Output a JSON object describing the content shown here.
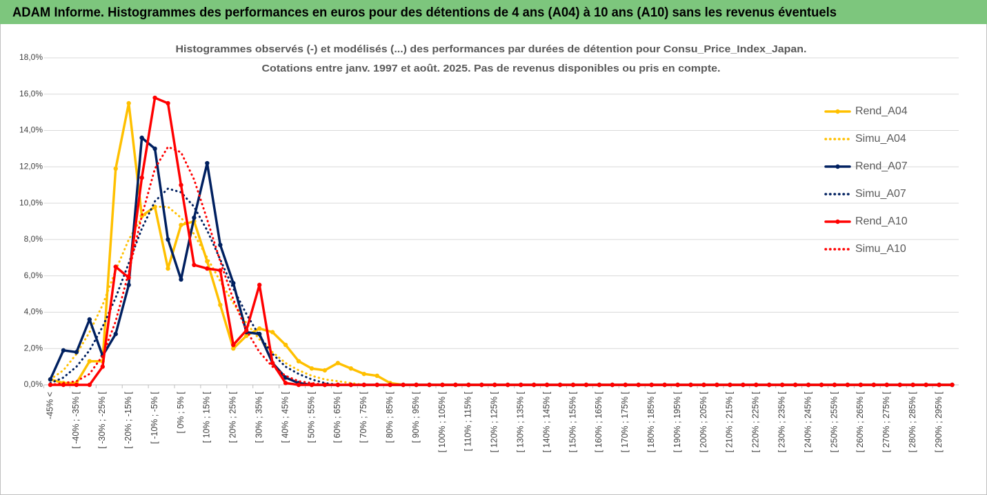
{
  "chart_data": {
    "type": "line",
    "header": "ADAM Informe. Histogrammes des performances en euros pour des détentions de 4 ans (A04) à 10 ans (A10) sans les revenus éventuels",
    "title": "Histogrammes observés (-) et modélisés (...) des performances par durées de détention pour Consu_Price_Index_Japan.",
    "subtitle": "Cotations entre janv. 1997 et août. 2025. Pas de revenus disponibles ou pris en compte.",
    "categories": [
      "-45% <",
      null,
      "[ -40% ; -35% [",
      null,
      "[ -30% ; -25% [",
      null,
      "[ -20% ; -15% [",
      null,
      "[ -10% ; -5% [",
      null,
      "[ 0% ; 5% [",
      null,
      "[ 10% ; 15% [",
      null,
      "[ 20% ; 25% [",
      null,
      "[ 30% ; 35% [",
      null,
      "[ 40% ; 45% [",
      null,
      "[ 50% ; 55% [",
      null,
      "[ 60% ; 65% [",
      null,
      "[ 70% ; 75% [",
      null,
      "[ 80% ; 85% [",
      null,
      "[ 90% ; 95% [",
      null,
      "[ 100% ; 105% [",
      null,
      "[ 110% ; 115% [",
      null,
      "[ 120% ; 125% [",
      null,
      "[ 130% ; 135% [",
      null,
      "[ 140% ; 145% [",
      null,
      "[ 150% ; 155% [",
      null,
      "[ 160% ; 165% [",
      null,
      "[ 170% ; 175% [",
      null,
      "[ 180% ; 185% [",
      null,
      "[ 190% ; 195% [",
      null,
      "[ 200% ; 205% [",
      null,
      "[ 210% ; 215% [",
      null,
      "[ 220% ; 225% [",
      null,
      "[ 230% ; 235% [",
      null,
      "[ 240% ; 245% [",
      null,
      "[ 250% ; 255% [",
      null,
      "[ 260% ; 265% [",
      null,
      "[ 270% ; 275% [",
      null,
      "[ 280% ; 285% [",
      null,
      "[ 290% ; 295% [",
      null
    ],
    "series": [
      {
        "name": "Rend_A04",
        "color": "#FFC000",
        "dash": false,
        "values": [
          0.3,
          0.1,
          0.1,
          1.3,
          1.3,
          11.9,
          15.5,
          9.3,
          9.8,
          6.4,
          8.8,
          9.0,
          6.8,
          4.4,
          2.0,
          2.7,
          3.1,
          2.9,
          2.2,
          1.3,
          0.9,
          0.8,
          1.2,
          0.9,
          0.6,
          0.5,
          0.1,
          0,
          0,
          0,
          0,
          0,
          0,
          0,
          0,
          0,
          0,
          0,
          0,
          0,
          0,
          0,
          0,
          0,
          0,
          0,
          0,
          0,
          0,
          0,
          0,
          0,
          0,
          0,
          0,
          0,
          0,
          0,
          0,
          0,
          0,
          0,
          0,
          0,
          0,
          0,
          0,
          0,
          0,
          0
        ]
      },
      {
        "name": "Simu_A04",
        "color": "#FFC000",
        "dash": true,
        "values": [
          0.3,
          0.8,
          1.7,
          2.9,
          4.4,
          6.3,
          8.0,
          9.2,
          9.8,
          9.8,
          9.2,
          8.3,
          7.0,
          5.7,
          4.5,
          3.4,
          2.5,
          1.8,
          1.2,
          0.8,
          0.5,
          0.3,
          0.2,
          0.1,
          0,
          0,
          0,
          0,
          0,
          0,
          0,
          0,
          0,
          0,
          0,
          0,
          0,
          0,
          0,
          0,
          0,
          0,
          0,
          0,
          0,
          0,
          0,
          0,
          0,
          0,
          0,
          0,
          0,
          0,
          0,
          0,
          0,
          0,
          0,
          0,
          0,
          0,
          0,
          0,
          0,
          0,
          0,
          0,
          0,
          0
        ]
      },
      {
        "name": "Rend_A07",
        "color": "#002060",
        "dash": false,
        "values": [
          0.3,
          1.9,
          1.8,
          3.6,
          1.6,
          2.8,
          5.5,
          13.6,
          13.0,
          8.0,
          5.8,
          9.2,
          12.2,
          7.7,
          5.6,
          2.9,
          2.8,
          1.2,
          0.4,
          0.1,
          0,
          0,
          0,
          0,
          0,
          0,
          0,
          0,
          0,
          0,
          0,
          0,
          0,
          0,
          0,
          0,
          0,
          0,
          0,
          0,
          0,
          0,
          0,
          0,
          0,
          0,
          0,
          0,
          0,
          0,
          0,
          0,
          0,
          0,
          0,
          0,
          0,
          0,
          0,
          0,
          0,
          0,
          0,
          0,
          0,
          0,
          0,
          0,
          0,
          0
        ]
      },
      {
        "name": "Simu_A07",
        "color": "#002060",
        "dash": true,
        "values": [
          0.1,
          0.4,
          1.0,
          1.9,
          3.2,
          4.8,
          6.7,
          8.6,
          10.1,
          10.8,
          10.6,
          9.8,
          8.5,
          6.9,
          5.3,
          3.9,
          2.7,
          1.7,
          1.0,
          0.6,
          0.3,
          0.1,
          0,
          0,
          0,
          0,
          0,
          0,
          0,
          0,
          0,
          0,
          0,
          0,
          0,
          0,
          0,
          0,
          0,
          0,
          0,
          0,
          0,
          0,
          0,
          0,
          0,
          0,
          0,
          0,
          0,
          0,
          0,
          0,
          0,
          0,
          0,
          0,
          0,
          0,
          0,
          0,
          0,
          0,
          0,
          0,
          0,
          0,
          0,
          0
        ]
      },
      {
        "name": "Rend_A10",
        "color": "#FF0000",
        "dash": false,
        "values": [
          0,
          0,
          0,
          0,
          1.0,
          6.5,
          5.9,
          11.4,
          15.8,
          15.5,
          11.0,
          6.6,
          6.4,
          6.3,
          2.2,
          3.0,
          5.5,
          1.2,
          0.1,
          0,
          0,
          0,
          0,
          0,
          0,
          0,
          0,
          0,
          0,
          0,
          0,
          0,
          0,
          0,
          0,
          0,
          0,
          0,
          0,
          0,
          0,
          0,
          0,
          0,
          0,
          0,
          0,
          0,
          0,
          0,
          0,
          0,
          0,
          0,
          0,
          0,
          0,
          0,
          0,
          0,
          0,
          0,
          0,
          0,
          0,
          0,
          0,
          0,
          0,
          0
        ]
      },
      {
        "name": "Simu_A10",
        "color": "#FF0000",
        "dash": true,
        "values": [
          0,
          0.1,
          0.2,
          0.6,
          1.6,
          3.5,
          6.2,
          9.3,
          11.9,
          13.1,
          12.8,
          11.3,
          9.1,
          6.8,
          4.7,
          3.0,
          1.8,
          1.0,
          0.5,
          0.2,
          0.1,
          0,
          0,
          0,
          0,
          0,
          0,
          0,
          0,
          0,
          0,
          0,
          0,
          0,
          0,
          0,
          0,
          0,
          0,
          0,
          0,
          0,
          0,
          0,
          0,
          0,
          0,
          0,
          0,
          0,
          0,
          0,
          0,
          0,
          0,
          0,
          0,
          0,
          0,
          0,
          0,
          0,
          0,
          0,
          0,
          0,
          0,
          0,
          0,
          0
        ]
      }
    ],
    "ylim": [
      0,
      18
    ],
    "yticks": [
      {
        "value": 0,
        "label": "0,0%"
      },
      {
        "value": 2,
        "label": "2,0%"
      },
      {
        "value": 4,
        "label": "4,0%"
      },
      {
        "value": 6,
        "label": "6,0%"
      },
      {
        "value": 8,
        "label": "8,0%"
      },
      {
        "value": 10,
        "label": "10,0%"
      },
      {
        "value": 12,
        "label": "12,0%"
      },
      {
        "value": 14,
        "label": "14,0%"
      },
      {
        "value": 16,
        "label": "16,0%"
      },
      {
        "value": 18,
        "label": "18,0%"
      }
    ],
    "grid": true,
    "legend": "right"
  }
}
